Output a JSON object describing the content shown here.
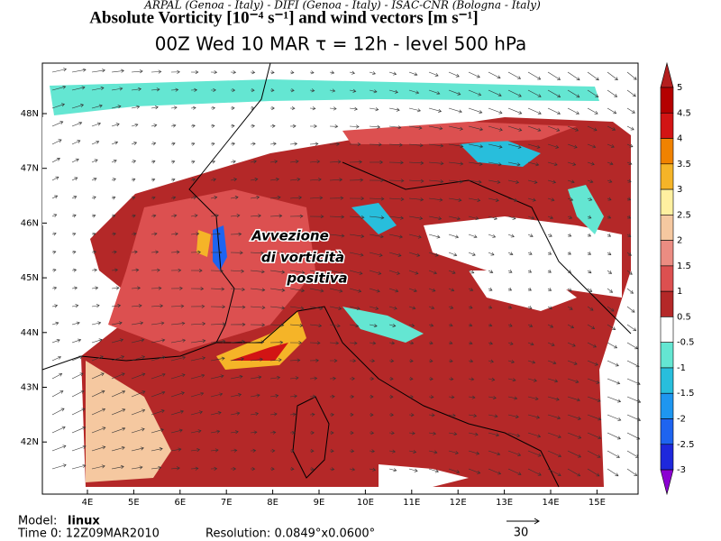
{
  "header": {
    "credits": "ARPAL (Genoa - Italy)  -  DIFI (Genoa - Italy)  -  ISAC-CNR (Bologna - Italy)",
    "title": "Absolute Vorticity [10⁻⁴ s⁻¹] and wind vectors [m s⁻¹]",
    "subtitle": "00Z Wed 10 MAR   τ = 12h   -   level 500 hPa"
  },
  "map": {
    "lat_labels": [
      "48N",
      "47N",
      "46N",
      "45N",
      "44N",
      "43N",
      "42N"
    ],
    "lon_labels": [
      "4E",
      "5E",
      "6E",
      "7E",
      "8E",
      "9E",
      "10E",
      "11E",
      "12E",
      "13E",
      "14E",
      "15E"
    ],
    "annotation": [
      "Avvezione",
      "di vorticità",
      "positiva"
    ]
  },
  "colorbar": {
    "labels": [
      "5",
      "4.5",
      "4",
      "3.5",
      "3",
      "2.5",
      "2",
      "1.5",
      "1",
      "0.5",
      "-0.5",
      "-1",
      "-1.5",
      "-2",
      "-2.5",
      "-3"
    ],
    "colors": [
      "#b41e1e",
      "#b40000",
      "#d21414",
      "#f08200",
      "#f5b428",
      "#fff0a0",
      "#f5c8a0",
      "#eb8c82",
      "#dc5050",
      "#b42828",
      "#ffffff",
      "#64e6d2",
      "#28bedc",
      "#1e96f0",
      "#1e64f0",
      "#1e28dc",
      "#8c00d2"
    ]
  },
  "footer": {
    "model_label": "Model:",
    "model": "linux",
    "time": "Time 0: 12Z09MAR2010",
    "resolution": "Resolution: 0.0849°x0.0600°",
    "ref_vector": "30"
  }
}
